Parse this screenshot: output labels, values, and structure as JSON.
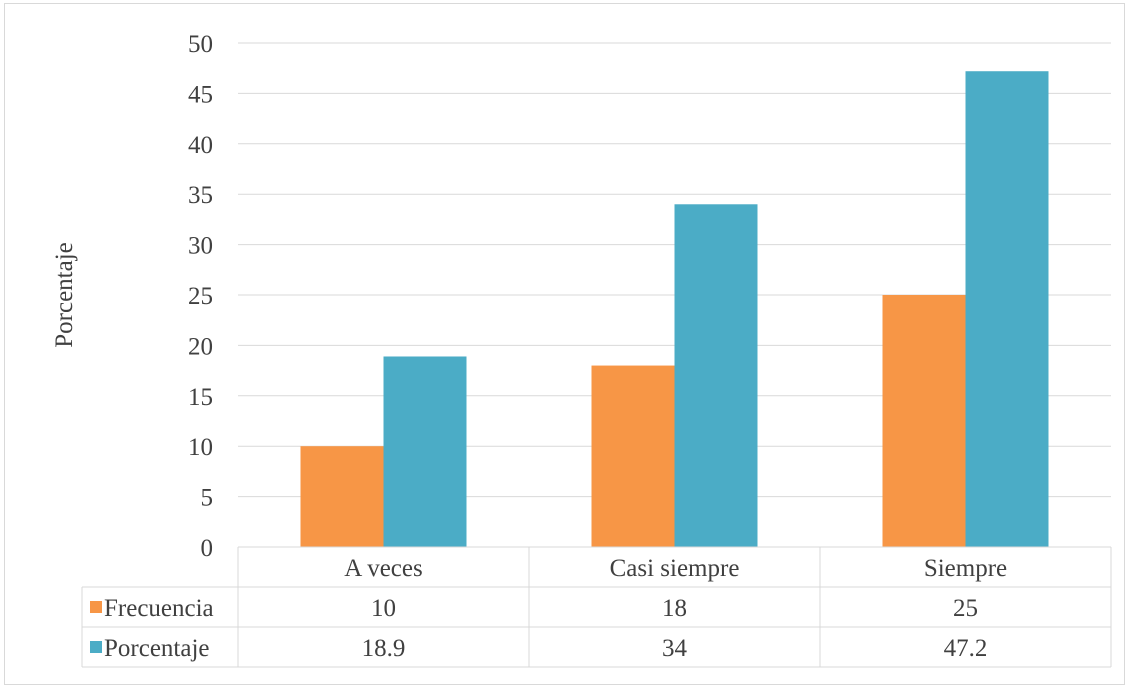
{
  "chart_data": {
    "type": "bar",
    "title": "",
    "xlabel": "",
    "ylabel": "Porcentaje",
    "ylim": [
      0,
      50
    ],
    "ytick_step": 5,
    "yticks": [
      "0",
      "5",
      "10",
      "15",
      "20",
      "25",
      "30",
      "35",
      "40",
      "45",
      "50"
    ],
    "grid": true,
    "legend": "data-table",
    "categories": [
      "A veces",
      "Casi siempre",
      "Siempre"
    ],
    "series": [
      {
        "name": "Frecuencia",
        "values": [
          10,
          18,
          25
        ],
        "labels": [
          "10",
          "18",
          "25"
        ],
        "color": "#f79646"
      },
      {
        "name": "Porcentaje",
        "values": [
          18.9,
          34,
          47.2
        ],
        "labels": [
          "18.9",
          "34",
          "47.2"
        ],
        "color": "#4bacc6"
      }
    ],
    "gridline_color": "#d9d9d9",
    "text_color": "#404040"
  }
}
